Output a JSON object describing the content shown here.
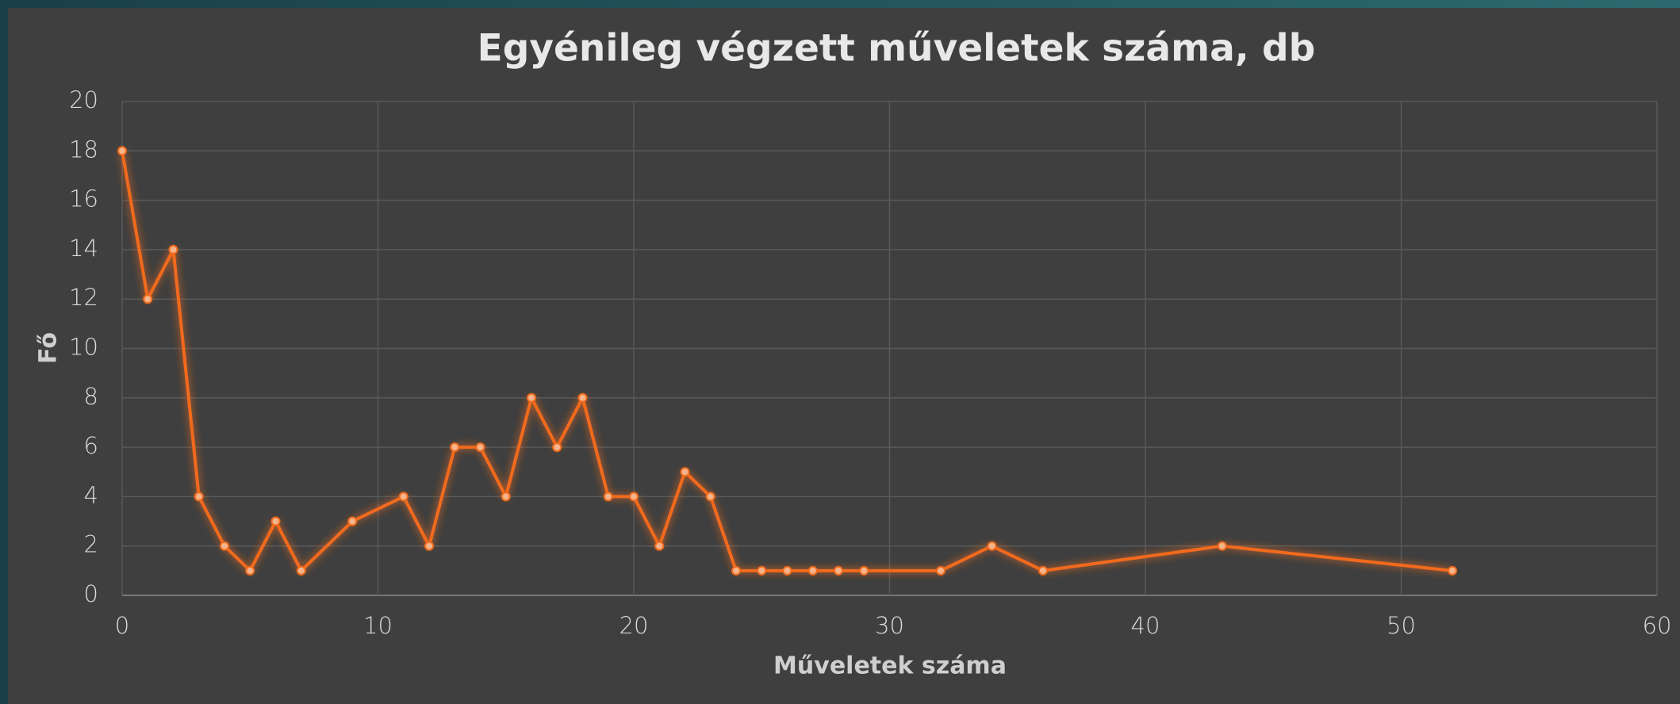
{
  "chart_data": {
    "type": "line",
    "title": "Egyénileg végzett műveletek száma, db",
    "xlabel": "Műveletek száma",
    "ylabel": "Fő",
    "x": [
      0,
      1,
      2,
      3,
      4,
      5,
      6,
      7,
      9,
      11,
      12,
      13,
      14,
      15,
      16,
      17,
      18,
      19,
      20,
      21,
      22,
      23,
      24,
      25,
      26,
      27,
      28,
      29,
      32,
      34,
      36,
      43,
      52
    ],
    "y": [
      18,
      12,
      14,
      4,
      2,
      1,
      3,
      1,
      3,
      4,
      2,
      6,
      6,
      4,
      8,
      6,
      8,
      4,
      4,
      2,
      5,
      4,
      1,
      1,
      1,
      1,
      1,
      1,
      1,
      2,
      1,
      2,
      1
    ],
    "color": "#f26b1d",
    "xlim": [
      0,
      60
    ],
    "xticks": [
      0,
      10,
      20,
      30,
      40,
      50,
      60
    ],
    "ylim": [
      0,
      20
    ],
    "yticks": [
      0,
      2,
      4,
      6,
      8,
      10,
      12,
      14,
      16,
      18,
      20
    ],
    "grid": true
  }
}
